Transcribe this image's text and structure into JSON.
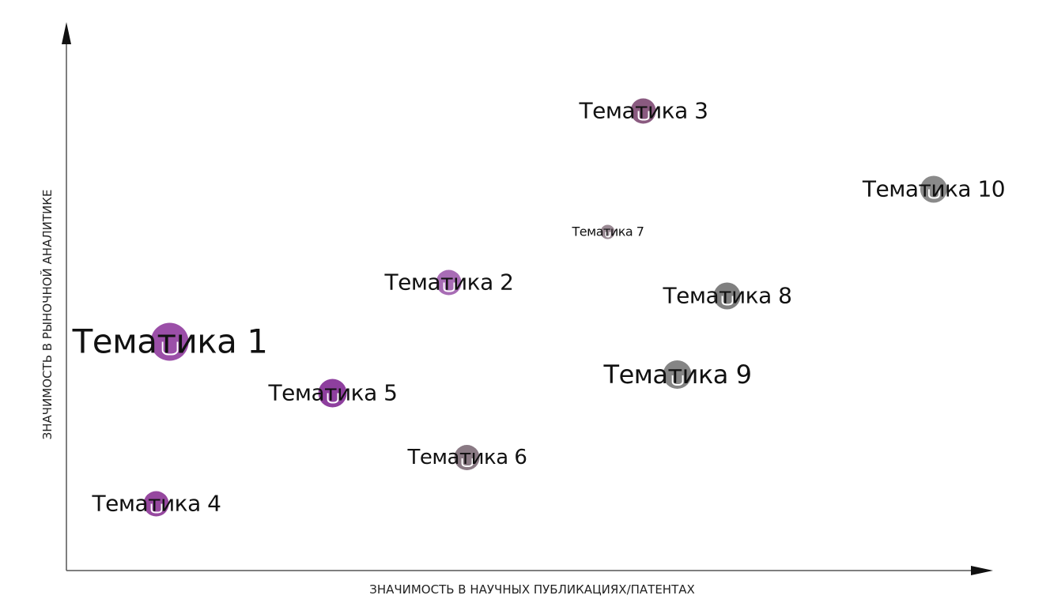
{
  "axes": {
    "x_label": "ЗНАЧИМОСТЬ В НАУЧНЫХ ПУБЛИКАЦИЯХ/ПАТЕНТАХ",
    "y_label": "ЗНАЧИМОСТЬ В РЫНОЧНОЙ АНАЛИТИКЕ"
  },
  "topics": [
    {
      "label": "Тематика 1",
      "color": "#9b4fa8"
    },
    {
      "label": "Тематика 2",
      "color": "#a86cb5"
    },
    {
      "label": "Тематика 3",
      "color": "#8a5a80"
    },
    {
      "label": "Тематика 4",
      "color": "#96489f"
    },
    {
      "label": "Тематика 5",
      "color": "#8e3f9e"
    },
    {
      "label": "Тематика 6",
      "color": "#8a7a84"
    },
    {
      "label": "Тематика 7",
      "color": "#9a8a94"
    },
    {
      "label": "Тематика 8",
      "color": "#808080"
    },
    {
      "label": "Тематика 9",
      "color": "#858585"
    },
    {
      "label": "Тематика 10",
      "color": "#8a8a8a"
    }
  ]
}
